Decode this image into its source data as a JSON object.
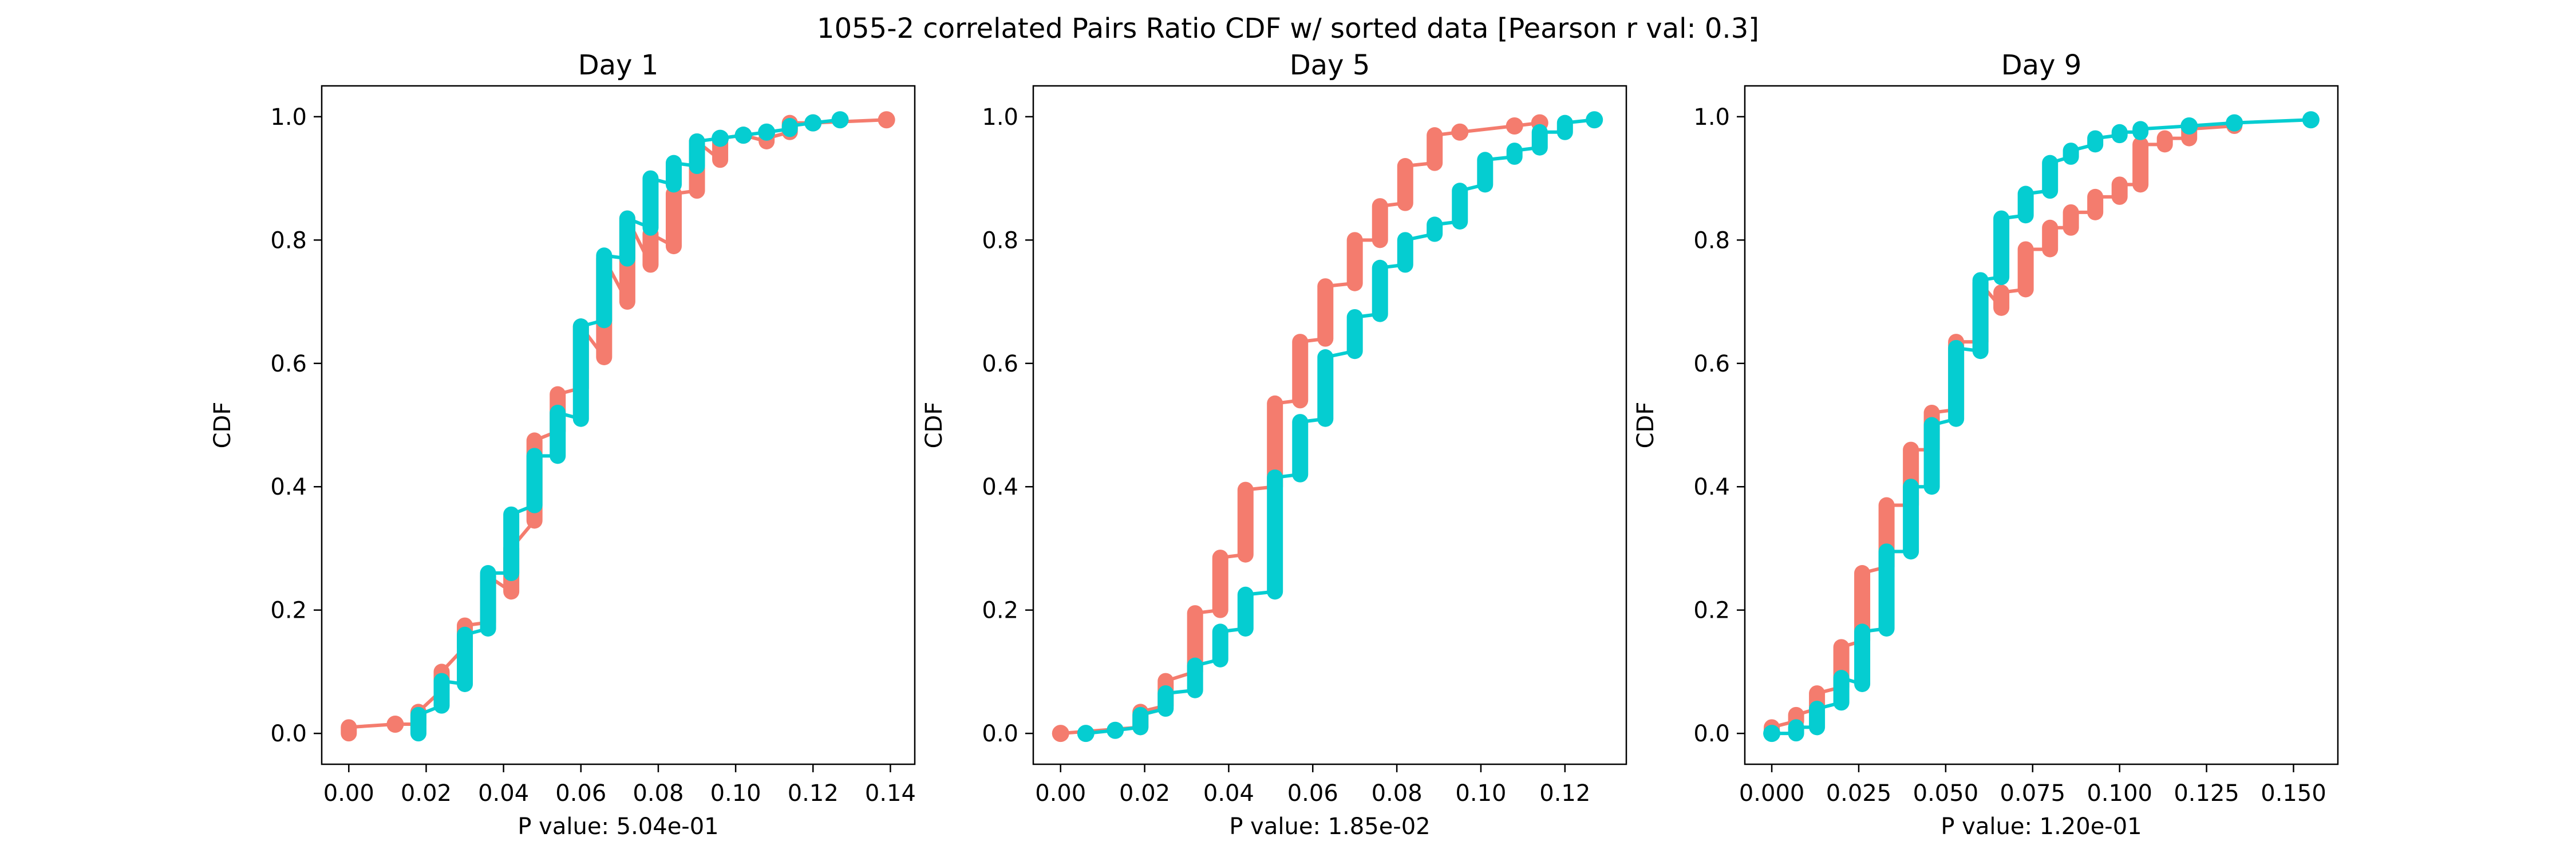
{
  "figure": {
    "title": "1055-2 correlated Pairs Ratio CDF w/ sorted data [Pearson r val: 0.3]"
  },
  "colors": {
    "series_a": "#f47c6e",
    "series_b": "#05cdd1",
    "axes": "#000000"
  },
  "chart_data": [
    {
      "type": "line",
      "title": "Day 1",
      "xlabel": "P value: 5.04e-01",
      "ylabel": "CDF",
      "xlim": [
        -0.007,
        0.1463
      ],
      "ylim": [
        -0.05,
        1.05
      ],
      "xticks": [
        0.0,
        0.02,
        0.04,
        0.06,
        0.08,
        0.1,
        0.12,
        0.14
      ],
      "xtick_labels": [
        "0.00",
        "0.02",
        "0.04",
        "0.06",
        "0.08",
        "0.10",
        "0.12",
        "0.14"
      ],
      "yticks": [
        0.0,
        0.2,
        0.4,
        0.6,
        0.8,
        1.0
      ],
      "ytick_labels": [
        "0.0",
        "0.2",
        "0.4",
        "0.6",
        "0.8",
        "1.0"
      ],
      "grid": false,
      "series": [
        {
          "color": "#f47c6e",
          "steps": [
            [
              0.0,
              0.0,
              0.01
            ],
            [
              0.012,
              0.015,
              0.015
            ],
            [
              0.018,
              0.015,
              0.035
            ],
            [
              0.024,
              0.07,
              0.1
            ],
            [
              0.03,
              0.14,
              0.175
            ],
            [
              0.036,
              0.18,
              0.255
            ],
            [
              0.042,
              0.23,
              0.3
            ],
            [
              0.048,
              0.345,
              0.475
            ],
            [
              0.054,
              0.49,
              0.55
            ],
            [
              0.06,
              0.56,
              0.66
            ],
            [
              0.066,
              0.61,
              0.77
            ],
            [
              0.072,
              0.7,
              0.835
            ],
            [
              0.078,
              0.76,
              0.81
            ],
            [
              0.084,
              0.79,
              0.875
            ],
            [
              0.09,
              0.88,
              0.96
            ],
            [
              0.096,
              0.93,
              0.965
            ],
            [
              0.102,
              0.97,
              0.97
            ],
            [
              0.108,
              0.96,
              0.965
            ],
            [
              0.114,
              0.975,
              0.99
            ],
            [
              0.12,
              0.99,
              0.99
            ],
            [
              0.139,
              0.995,
              0.995
            ]
          ]
        },
        {
          "color": "#05cdd1",
          "steps": [
            [
              0.018,
              0.0,
              0.03
            ],
            [
              0.024,
              0.045,
              0.085
            ],
            [
              0.03,
              0.08,
              0.16
            ],
            [
              0.036,
              0.17,
              0.26
            ],
            [
              0.042,
              0.26,
              0.355
            ],
            [
              0.048,
              0.37,
              0.45
            ],
            [
              0.054,
              0.45,
              0.52
            ],
            [
              0.06,
              0.51,
              0.66
            ],
            [
              0.066,
              0.67,
              0.775
            ],
            [
              0.072,
              0.77,
              0.835
            ],
            [
              0.078,
              0.82,
              0.9
            ],
            [
              0.084,
              0.89,
              0.925
            ],
            [
              0.09,
              0.92,
              0.96
            ],
            [
              0.096,
              0.965,
              0.965
            ],
            [
              0.102,
              0.97,
              0.97
            ],
            [
              0.108,
              0.975,
              0.975
            ],
            [
              0.114,
              0.98,
              0.985
            ],
            [
              0.12,
              0.99,
              0.99
            ],
            [
              0.127,
              0.995,
              0.995
            ]
          ]
        }
      ]
    },
    {
      "type": "line",
      "title": "Day 5",
      "xlabel": "P value: 1.85e-02",
      "ylabel": "CDF",
      "xlim": [
        -0.0065,
        0.1346
      ],
      "ylim": [
        -0.05,
        1.05
      ],
      "xticks": [
        0.0,
        0.02,
        0.04,
        0.06,
        0.08,
        0.1,
        0.12
      ],
      "xtick_labels": [
        "0.00",
        "0.02",
        "0.04",
        "0.06",
        "0.08",
        "0.10",
        "0.12"
      ],
      "yticks": [
        0.0,
        0.2,
        0.4,
        0.6,
        0.8,
        1.0
      ],
      "ytick_labels": [
        "0.0",
        "0.2",
        "0.4",
        "0.6",
        "0.8",
        "1.0"
      ],
      "grid": false,
      "series": [
        {
          "color": "#f47c6e",
          "steps": [
            [
              0.0,
              0.0,
              0.0
            ],
            [
              0.019,
              0.01,
              0.035
            ],
            [
              0.025,
              0.045,
              0.085
            ],
            [
              0.032,
              0.1,
              0.195
            ],
            [
              0.038,
              0.2,
              0.285
            ],
            [
              0.044,
              0.29,
              0.395
            ],
            [
              0.051,
              0.4,
              0.535
            ],
            [
              0.057,
              0.54,
              0.635
            ],
            [
              0.063,
              0.64,
              0.725
            ],
            [
              0.07,
              0.73,
              0.8
            ],
            [
              0.076,
              0.8,
              0.855
            ],
            [
              0.082,
              0.86,
              0.92
            ],
            [
              0.089,
              0.925,
              0.97
            ],
            [
              0.095,
              0.975,
              0.975
            ],
            [
              0.108,
              0.985,
              0.985
            ],
            [
              0.114,
              0.99,
              0.99
            ]
          ]
        },
        {
          "color": "#05cdd1",
          "steps": [
            [
              0.006,
              0.0,
              0.0
            ],
            [
              0.013,
              0.005,
              0.005
            ],
            [
              0.019,
              0.01,
              0.03
            ],
            [
              0.025,
              0.04,
              0.065
            ],
            [
              0.032,
              0.07,
              0.11
            ],
            [
              0.038,
              0.12,
              0.165
            ],
            [
              0.044,
              0.17,
              0.225
            ],
            [
              0.051,
              0.23,
              0.415
            ],
            [
              0.057,
              0.42,
              0.505
            ],
            [
              0.063,
              0.51,
              0.61
            ],
            [
              0.07,
              0.62,
              0.675
            ],
            [
              0.076,
              0.68,
              0.755
            ],
            [
              0.082,
              0.76,
              0.8
            ],
            [
              0.089,
              0.81,
              0.825
            ],
            [
              0.095,
              0.83,
              0.88
            ],
            [
              0.101,
              0.89,
              0.93
            ],
            [
              0.108,
              0.935,
              0.945
            ],
            [
              0.114,
              0.95,
              0.975
            ],
            [
              0.12,
              0.975,
              0.99
            ],
            [
              0.127,
              0.995,
              0.995
            ]
          ]
        }
      ]
    },
    {
      "type": "line",
      "title": "Day 9",
      "xlabel": "P value: 1.20e-01",
      "ylabel": "CDF",
      "xlim": [
        -0.00775,
        0.16275
      ],
      "ylim": [
        -0.05,
        1.05
      ],
      "xticks": [
        0.0,
        0.025,
        0.05,
        0.075,
        0.1,
        0.125,
        0.15
      ],
      "xtick_labels": [
        "0.000",
        "0.025",
        "0.050",
        "0.075",
        "0.100",
        "0.125",
        "0.150"
      ],
      "yticks": [
        0.0,
        0.2,
        0.4,
        0.6,
        0.8,
        1.0
      ],
      "ytick_labels": [
        "0.0",
        "0.2",
        "0.4",
        "0.6",
        "0.8",
        "1.0"
      ],
      "grid": false,
      "series": [
        {
          "color": "#f47c6e",
          "steps": [
            [
              0.0,
              0.0,
              0.01
            ],
            [
              0.007,
              0.02,
              0.03
            ],
            [
              0.013,
              0.04,
              0.065
            ],
            [
              0.02,
              0.075,
              0.14
            ],
            [
              0.026,
              0.15,
              0.26
            ],
            [
              0.033,
              0.27,
              0.37
            ],
            [
              0.04,
              0.37,
              0.46
            ],
            [
              0.046,
              0.46,
              0.52
            ],
            [
              0.053,
              0.525,
              0.635
            ],
            [
              0.06,
              0.635,
              0.73
            ],
            [
              0.066,
              0.69,
              0.715
            ],
            [
              0.073,
              0.72,
              0.785
            ],
            [
              0.08,
              0.785,
              0.82
            ],
            [
              0.086,
              0.82,
              0.845
            ],
            [
              0.093,
              0.845,
              0.87
            ],
            [
              0.1,
              0.87,
              0.89
            ],
            [
              0.106,
              0.89,
              0.955
            ],
            [
              0.113,
              0.955,
              0.965
            ],
            [
              0.12,
              0.965,
              0.98
            ],
            [
              0.133,
              0.985,
              0.99
            ]
          ]
        },
        {
          "color": "#05cdd1",
          "steps": [
            [
              0.0,
              0.0,
              0.0
            ],
            [
              0.007,
              0.0,
              0.01
            ],
            [
              0.013,
              0.01,
              0.04
            ],
            [
              0.02,
              0.05,
              0.09
            ],
            [
              0.026,
              0.08,
              0.165
            ],
            [
              0.033,
              0.17,
              0.295
            ],
            [
              0.04,
              0.295,
              0.4
            ],
            [
              0.046,
              0.4,
              0.5
            ],
            [
              0.053,
              0.51,
              0.625
            ],
            [
              0.06,
              0.62,
              0.735
            ],
            [
              0.066,
              0.74,
              0.835
            ],
            [
              0.073,
              0.84,
              0.875
            ],
            [
              0.08,
              0.88,
              0.925
            ],
            [
              0.086,
              0.935,
              0.945
            ],
            [
              0.093,
              0.955,
              0.965
            ],
            [
              0.1,
              0.97,
              0.975
            ],
            [
              0.106,
              0.975,
              0.98
            ],
            [
              0.12,
              0.985,
              0.985
            ],
            [
              0.133,
              0.99,
              0.99
            ],
            [
              0.155,
              0.995,
              0.995
            ]
          ]
        }
      ]
    }
  ]
}
